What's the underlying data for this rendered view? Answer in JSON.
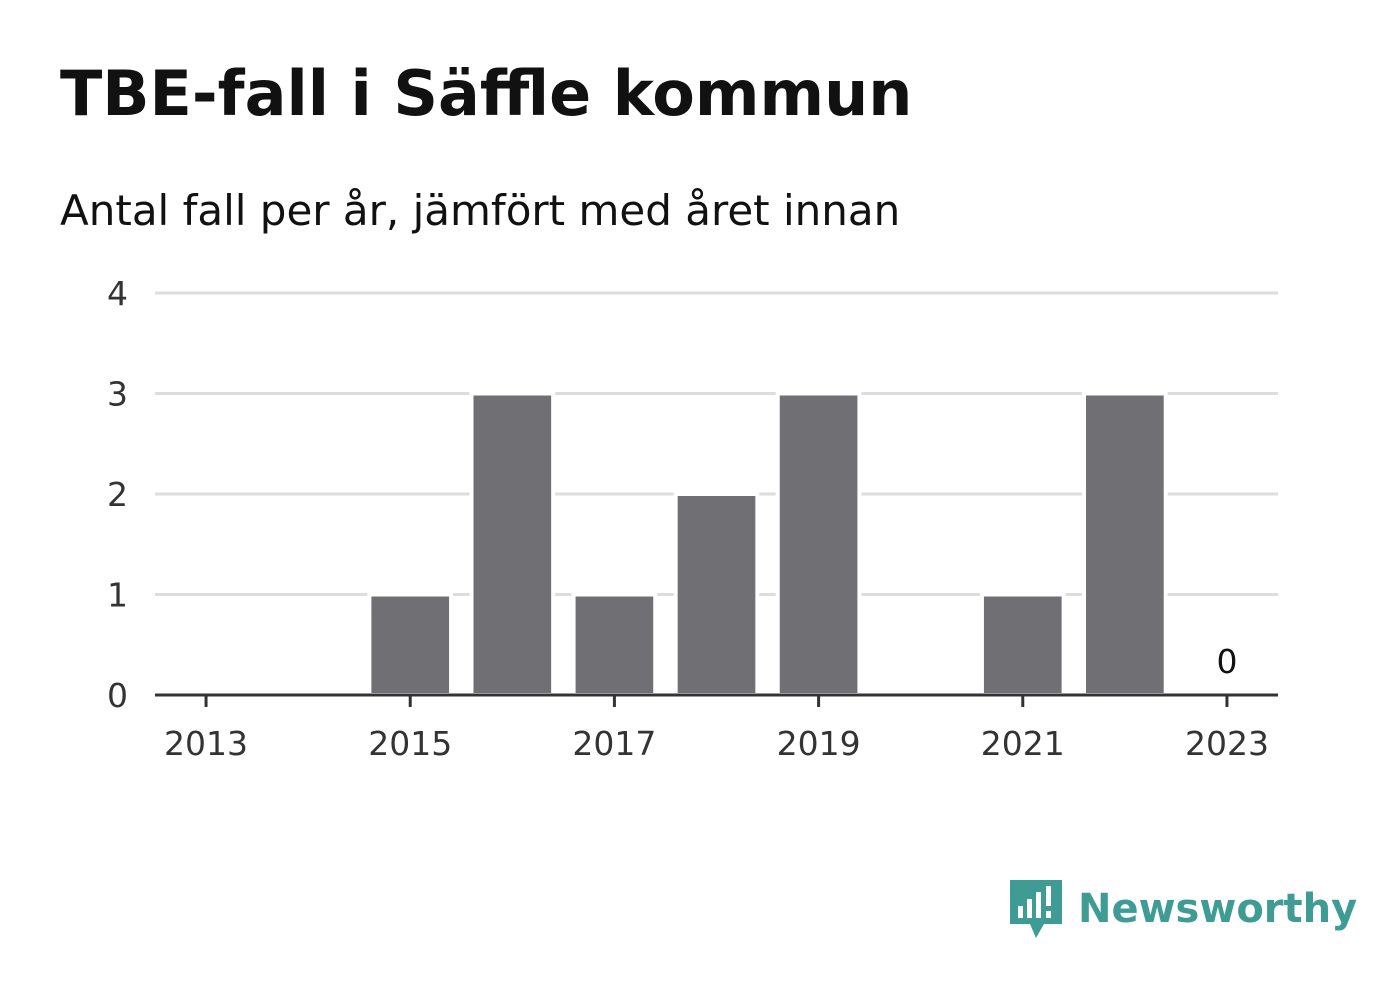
{
  "header": {
    "title": "TBE-fall i Säffle kommun",
    "subtitle": "Antal fall per år, jämfört med året innan"
  },
  "brand": {
    "name": "Newsworthy",
    "color": "#3f9c94"
  },
  "chart_data": {
    "type": "bar",
    "categories": [
      2013,
      2014,
      2015,
      2016,
      2017,
      2018,
      2019,
      2020,
      2021,
      2022,
      2023
    ],
    "values": [
      0,
      0,
      1,
      3,
      1,
      2,
      3,
      0,
      1,
      3,
      0
    ],
    "x_tick_labels": [
      "2013",
      "2015",
      "2017",
      "2019",
      "2021",
      "2023"
    ],
    "y_ticks": [
      0,
      1,
      2,
      3,
      4
    ],
    "ylim": [
      0,
      4
    ],
    "labeled_points": [
      {
        "category": 2023,
        "label": "0"
      }
    ],
    "bar_color": "#706f74",
    "grid": true,
    "legend": "none"
  }
}
